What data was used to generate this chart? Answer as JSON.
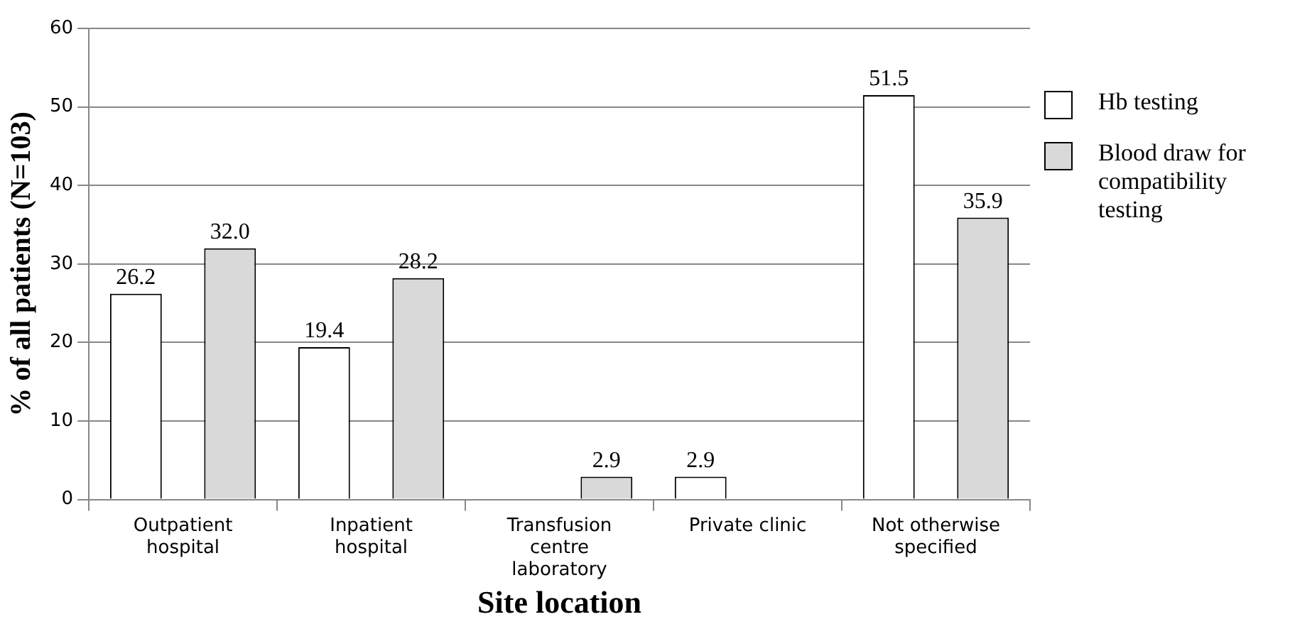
{
  "chart_data": {
    "type": "bar",
    "xlabel": "Site location",
    "ylabel": "% of all patients (N=103)",
    "categories": [
      "Outpatient hospital",
      "Inpatient hospital",
      "Transfusion centre laboratory",
      "Private clinic",
      "Not otherwise specified"
    ],
    "series": [
      {
        "name": "Hb testing",
        "color": "#ffffff",
        "values": [
          26.2,
          19.4,
          0,
          2.9,
          51.5
        ],
        "value_labels": [
          "26.2",
          "19.4",
          null,
          "2.9",
          "51.5"
        ]
      },
      {
        "name": "Blood draw for compatibility testing",
        "color": "#d9d9d9",
        "values": [
          32.0,
          28.2,
          2.9,
          0,
          35.9
        ],
        "value_labels": [
          "32.0",
          "28.2",
          "2.9",
          null,
          "35.9"
        ]
      }
    ],
    "ylim": [
      0,
      60
    ],
    "yticks": [
      0,
      10,
      20,
      30,
      40,
      50,
      60
    ],
    "grid": "y",
    "legend": "right"
  }
}
